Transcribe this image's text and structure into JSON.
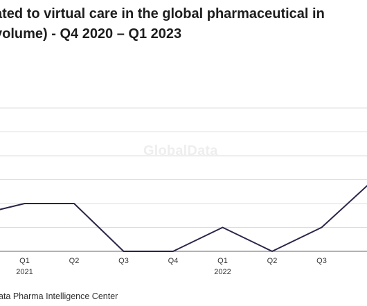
{
  "title_lines": [
    "ated to virtual care in the global pharmaceutical in",
    "volume) - Q4 2020 – Q1 2023"
  ],
  "watermark": "GlobalData",
  "source": "ata Pharma Intelligence Center",
  "colors": {
    "line": "#2a2547",
    "grid": "#dcdcdc",
    "axis": "#666666",
    "text": "#222222"
  },
  "chart_data": {
    "type": "line",
    "title": "ated to virtual care in the global pharmaceutical in volume) - Q4 2020 – Q1 2023",
    "xlabel": "",
    "ylabel": "",
    "grid": true,
    "categories": [
      {
        "quarter": "",
        "year": ""
      },
      {
        "quarter": "Q1",
        "year": "2021"
      },
      {
        "quarter": "Q2",
        "year": ""
      },
      {
        "quarter": "Q3",
        "year": ""
      },
      {
        "quarter": "Q4",
        "year": ""
      },
      {
        "quarter": "Q1",
        "year": "2022"
      },
      {
        "quarter": "Q2",
        "year": ""
      },
      {
        "quarter": "Q3",
        "year": ""
      },
      {
        "quarter": "",
        "year": ""
      }
    ],
    "values": [
      1.5,
      2,
      2,
      0,
      0,
      1,
      0,
      1,
      2.9
    ],
    "ylim": [
      0,
      6
    ]
  }
}
